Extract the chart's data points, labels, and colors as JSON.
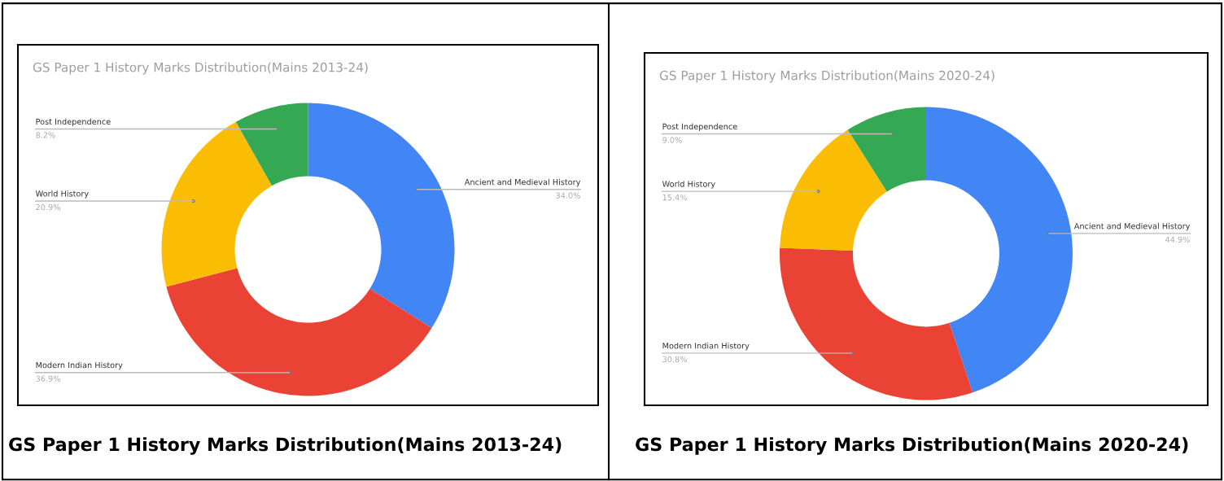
{
  "chart_data": [
    {
      "type": "donut",
      "title": "GS Paper 1 History Marks Distribution(Mains 2013-24)",
      "categories": [
        "Ancient and Medieval History",
        "Modern Indian History",
        "World History",
        "Post Independence"
      ],
      "values": [
        34.0,
        36.9,
        20.9,
        8.2
      ],
      "value_labels": [
        "34.0%",
        "36.9%",
        "20.9%",
        "8.2%"
      ],
      "colors": [
        "#4285f4",
        "#ea4335",
        "#fbbc04",
        "#34a853"
      ],
      "annotations": [
        "GS Paper 1 History Marks Distribution(Mains 2013-24)"
      ]
    },
    {
      "type": "donut",
      "title": "GS Paper 1 History Marks Distribution(Mains 2020-24)",
      "categories": [
        "Ancient and Medieval History",
        "Modern Indian History",
        "World History",
        "Post Independence"
      ],
      "values": [
        44.9,
        30.8,
        15.4,
        9.0
      ],
      "value_labels": [
        "44.9%",
        "30.8%",
        "15.4%",
        "9.0%"
      ],
      "colors": [
        "#4285f4",
        "#ea4335",
        "#fbbc04",
        "#34a853"
      ],
      "annotations": [
        "GS Paper 1 History Marks Distribution(Mains 2020-24)"
      ]
    }
  ]
}
